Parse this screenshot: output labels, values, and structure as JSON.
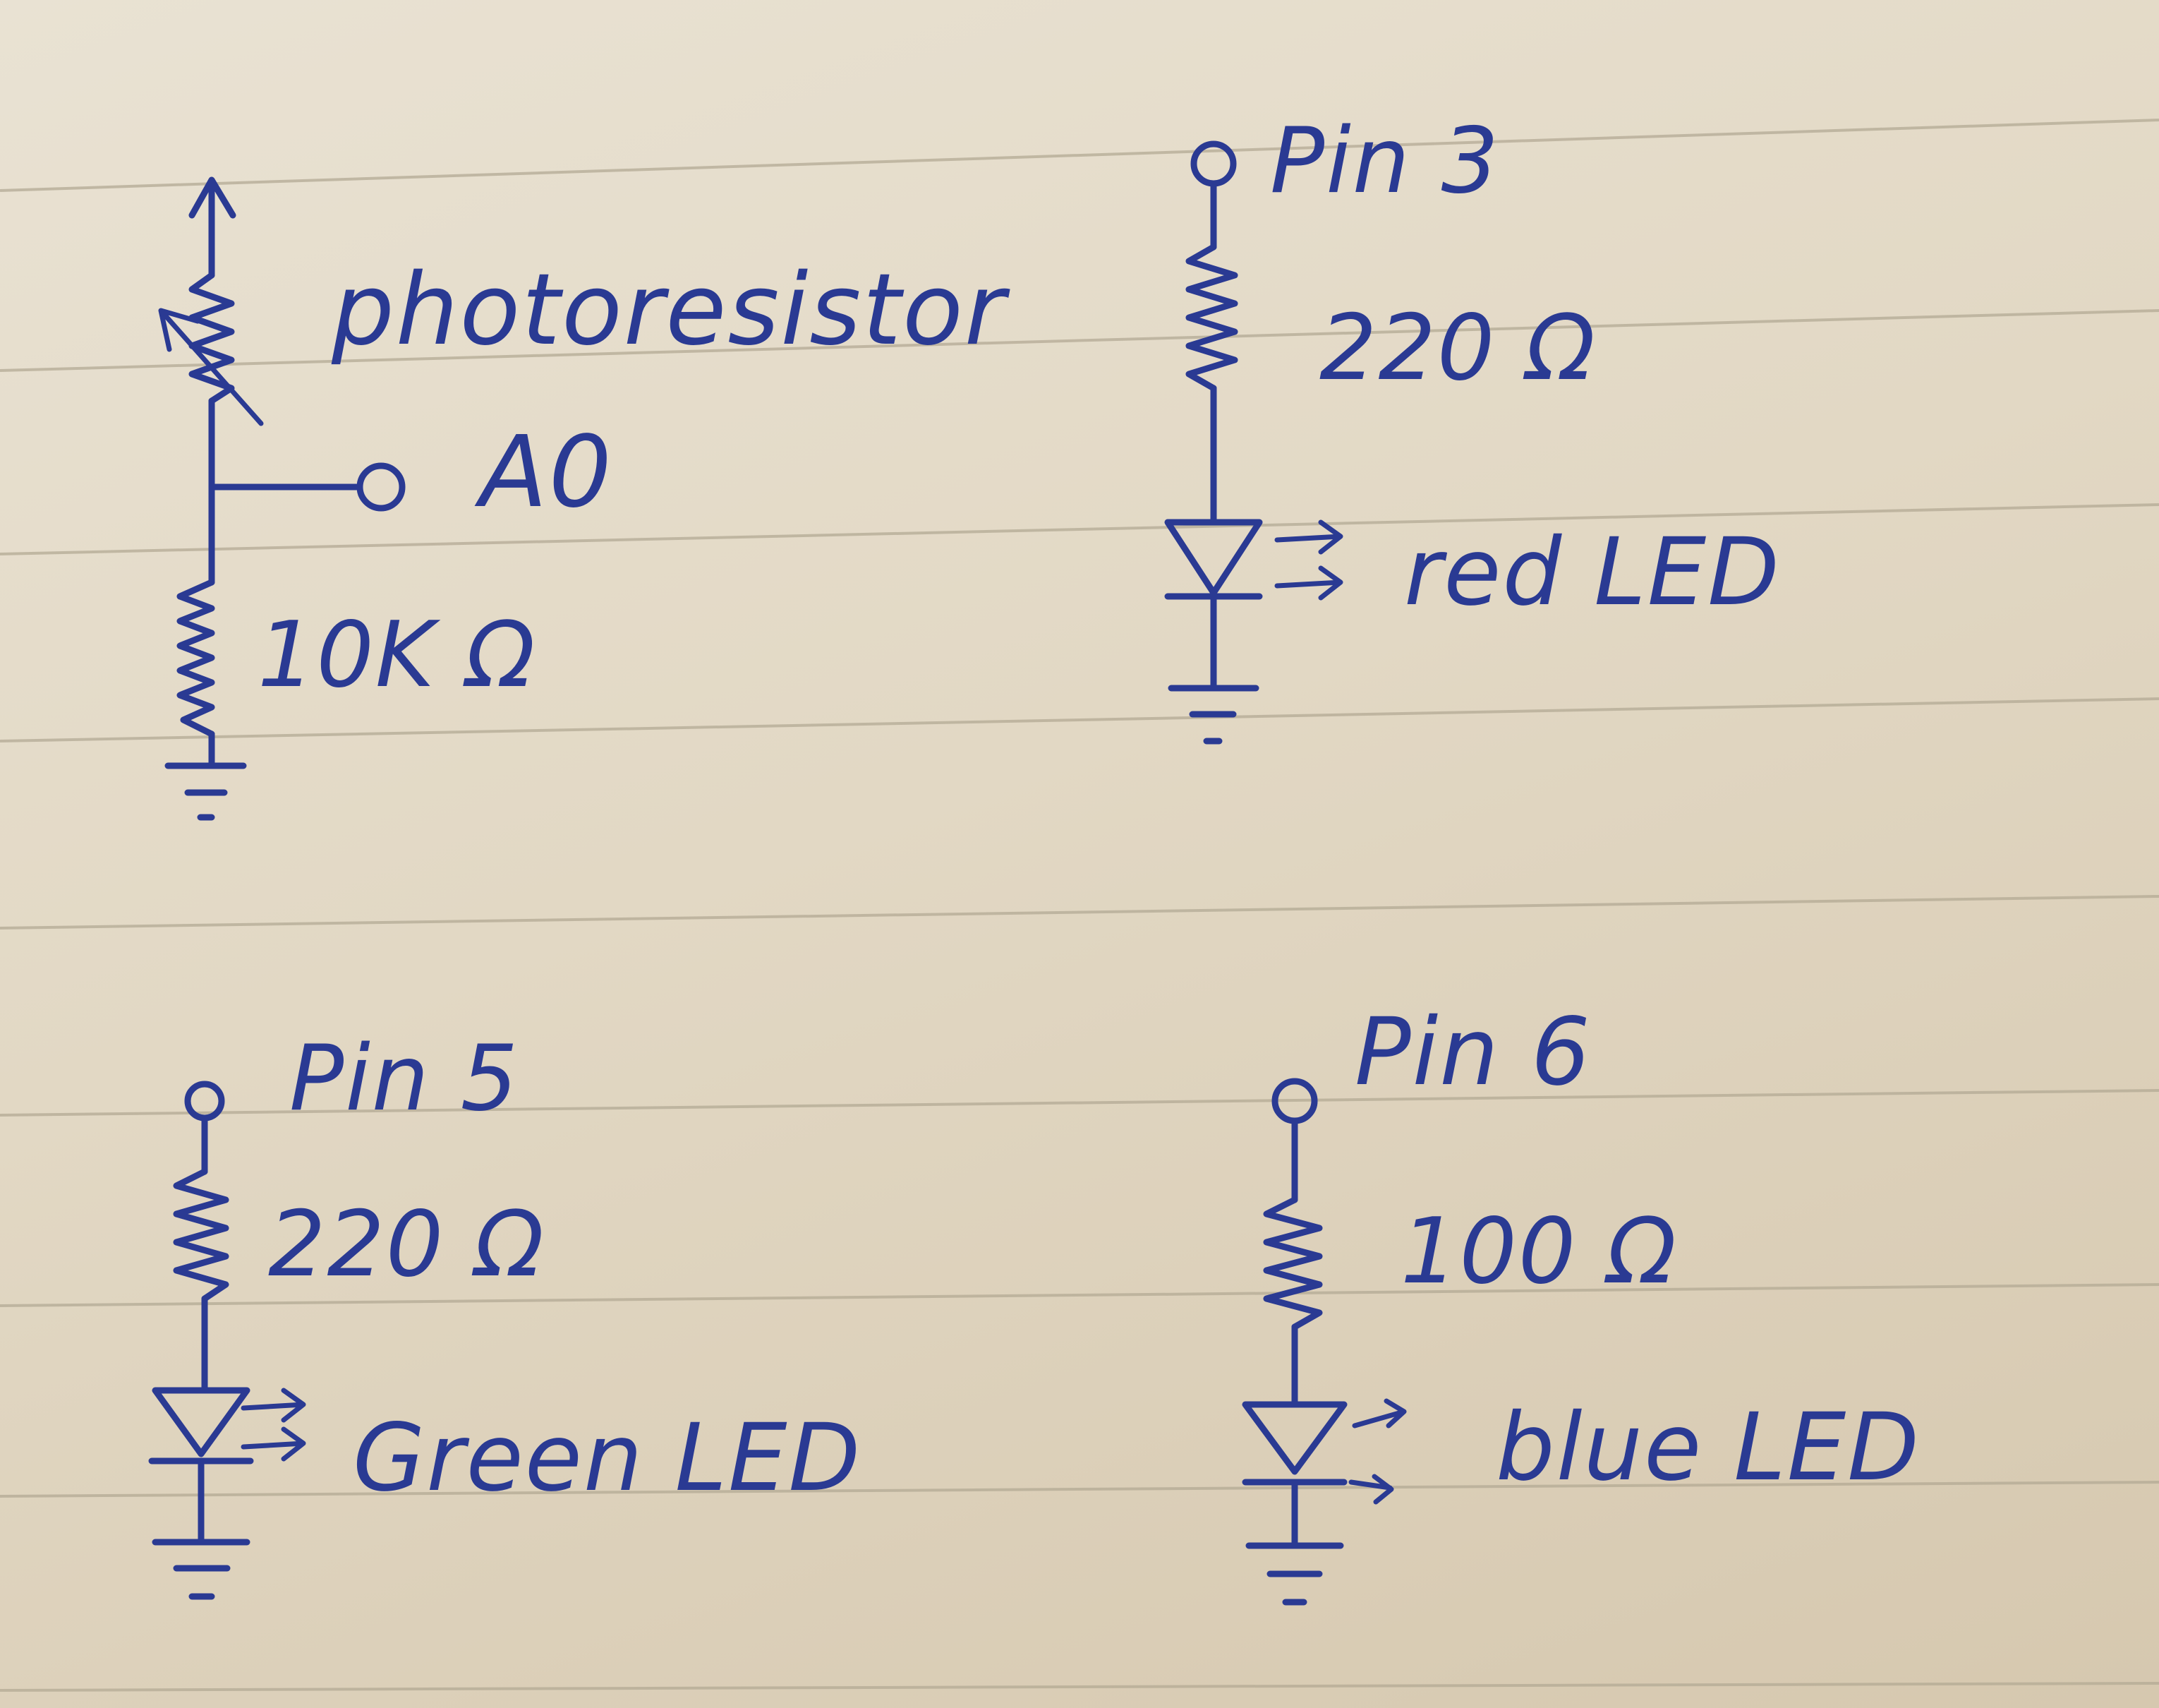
{
  "colors": {
    "ink": "#2a3a93",
    "paper": "#e6ddcb",
    "rule_line": "#b3a994"
  },
  "circuits": [
    {
      "id": "photoresistor-divider",
      "labels": {
        "component": "photoresistor",
        "node": "A0",
        "resistor": "10K Ω"
      },
      "ground": "ground-symbol"
    },
    {
      "id": "red-led-circuit",
      "labels": {
        "pin": "Pin 3",
        "resistor": "220 Ω",
        "led": "red LED"
      },
      "ground": "ground-symbol"
    },
    {
      "id": "green-led-circuit",
      "labels": {
        "pin": "Pin 5",
        "resistor": "220 Ω",
        "led": "Green LED"
      },
      "ground": "ground-symbol"
    },
    {
      "id": "blue-led-circuit",
      "labels": {
        "pin": "Pin 6",
        "resistor": "100 Ω",
        "led": "blue LED"
      },
      "ground": "ground-symbol"
    }
  ]
}
